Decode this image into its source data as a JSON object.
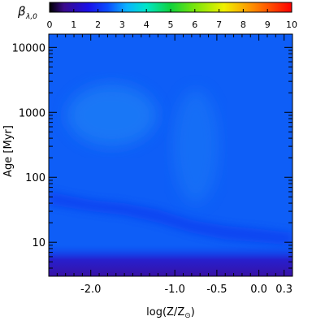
{
  "chart_data": {
    "type": "heatmap",
    "colorbar": {
      "label": "β",
      "label_sub": "λ,0",
      "min": 0,
      "max": 10,
      "tick_labels": [
        "0",
        "1",
        "2",
        "3",
        "4",
        "5",
        "6",
        "7",
        "8",
        "9",
        "10"
      ],
      "colormap": "rainbow"
    },
    "xlabel": "log(Z/Z",
    "xlabel_symbol": "⊙",
    "xlabel_close": ")",
    "ylabel": "Age [Myr]",
    "y_scale": "log",
    "xlim": [
      -2.5,
      0.4
    ],
    "ylim": [
      3,
      16000
    ],
    "x_ticks": [
      {
        "value": -2.0,
        "label": "-2.0"
      },
      {
        "value": -1.0,
        "label": "-1.0"
      },
      {
        "value": -0.5,
        "label": "-0.5"
      },
      {
        "value": 0.0,
        "label": "0.0"
      },
      {
        "value": 0.3,
        "label": "0.3"
      }
    ],
    "y_ticks": [
      {
        "value": 10,
        "label": "10"
      },
      {
        "value": 100,
        "label": "100"
      },
      {
        "value": 1000,
        "label": "1000"
      },
      {
        "value": 10000,
        "label": "10000"
      }
    ],
    "colors": {
      "background_field": "#0e5ef7",
      "bright_region": "#1a7bf6",
      "dark_band": "#0a3ef0",
      "bottom_band": "#3a10a0"
    },
    "grid": false
  }
}
